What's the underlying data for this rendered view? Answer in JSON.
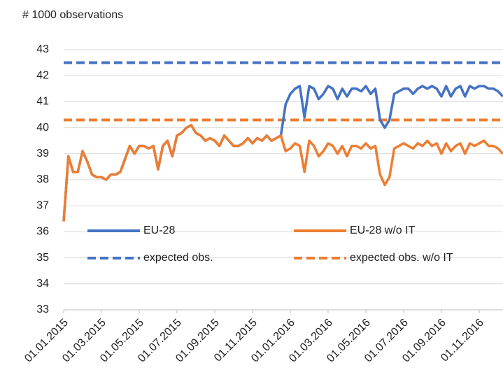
{
  "chart_data": {
    "type": "line",
    "title": "# 1000 observations",
    "categories": [
      "01.01.2015",
      null,
      null,
      null,
      null,
      null,
      null,
      null,
      "01.03.2015",
      null,
      null,
      null,
      null,
      null,
      null,
      null,
      "01.05.2015",
      null,
      null,
      null,
      null,
      null,
      null,
      null,
      "01.07.2015",
      null,
      null,
      null,
      null,
      null,
      null,
      null,
      "01.09.2015",
      null,
      null,
      null,
      null,
      null,
      null,
      null,
      "01.11.2015",
      null,
      null,
      null,
      null,
      null,
      null,
      null,
      "01.01.2016",
      null,
      null,
      null,
      null,
      null,
      null,
      null,
      "01.03.2016",
      null,
      null,
      null,
      null,
      null,
      null,
      null,
      "01.05.2016",
      null,
      null,
      null,
      null,
      null,
      null,
      null,
      "01.07.2016",
      null,
      null,
      null,
      null,
      null,
      null,
      null,
      "01.09.2016",
      null,
      null,
      null,
      null,
      null,
      null,
      null,
      "01.11.2016",
      null,
      null,
      null,
      null,
      null
    ],
    "series": [
      {
        "name": "EU-28",
        "color": "#4472c4",
        "values": [
          36.4,
          38.9,
          38.3,
          38.3,
          39.1,
          38.7,
          38.2,
          38.1,
          38.1,
          38.0,
          38.2,
          38.2,
          38.3,
          38.8,
          39.3,
          39.0,
          39.3,
          39.3,
          39.2,
          39.3,
          38.4,
          39.3,
          39.5,
          38.9,
          39.7,
          39.8,
          40.0,
          40.1,
          39.8,
          39.7,
          39.5,
          39.6,
          39.5,
          39.3,
          39.7,
          39.5,
          39.3,
          39.3,
          39.4,
          39.6,
          39.4,
          39.6,
          39.5,
          39.7,
          39.5,
          39.6,
          39.7,
          40.9,
          41.3,
          41.5,
          41.6,
          40.4,
          41.6,
          41.5,
          41.1,
          41.3,
          41.6,
          41.5,
          41.1,
          41.5,
          41.2,
          41.5,
          41.5,
          41.4,
          41.6,
          41.3,
          41.5,
          40.3,
          40.0,
          40.3,
          41.3,
          41.4,
          41.5,
          41.5,
          41.3,
          41.5,
          41.6,
          41.5,
          41.6,
          41.5,
          41.2,
          41.6,
          41.2,
          41.5,
          41.6,
          41.2,
          41.6,
          41.5,
          41.6,
          41.6,
          41.5,
          41.5,
          41.4,
          41.2
        ]
      },
      {
        "name": "EU-28 w/o IT",
        "color": "#ed7d31",
        "values": [
          36.4,
          38.9,
          38.3,
          38.3,
          39.1,
          38.7,
          38.2,
          38.1,
          38.1,
          38.0,
          38.2,
          38.2,
          38.3,
          38.8,
          39.3,
          39.0,
          39.3,
          39.3,
          39.2,
          39.3,
          38.4,
          39.3,
          39.5,
          38.9,
          39.7,
          39.8,
          40.0,
          40.1,
          39.8,
          39.7,
          39.5,
          39.6,
          39.5,
          39.3,
          39.7,
          39.5,
          39.3,
          39.3,
          39.4,
          39.6,
          39.4,
          39.6,
          39.5,
          39.7,
          39.5,
          39.6,
          39.7,
          39.1,
          39.2,
          39.4,
          39.3,
          38.3,
          39.5,
          39.3,
          38.9,
          39.1,
          39.4,
          39.3,
          39.0,
          39.3,
          38.9,
          39.3,
          39.3,
          39.2,
          39.4,
          39.2,
          39.3,
          38.2,
          37.8,
          38.1,
          39.2,
          39.3,
          39.4,
          39.3,
          39.2,
          39.4,
          39.3,
          39.5,
          39.3,
          39.4,
          39.0,
          39.4,
          39.1,
          39.3,
          39.4,
          39.0,
          39.4,
          39.3,
          39.4,
          39.5,
          39.3,
          39.3,
          39.2,
          39.0
        ]
      }
    ],
    "hlines": [
      {
        "name": "expected obs.",
        "color": "#4472c4",
        "value": 42.5
      },
      {
        "name": "expected obs. w/o IT",
        "color": "#ed7d31",
        "value": 40.3
      }
    ],
    "ylim": [
      33,
      43
    ],
    "yticks": [
      33,
      34,
      35,
      36,
      37,
      38,
      39,
      40,
      41,
      42,
      43
    ],
    "grid": true
  }
}
